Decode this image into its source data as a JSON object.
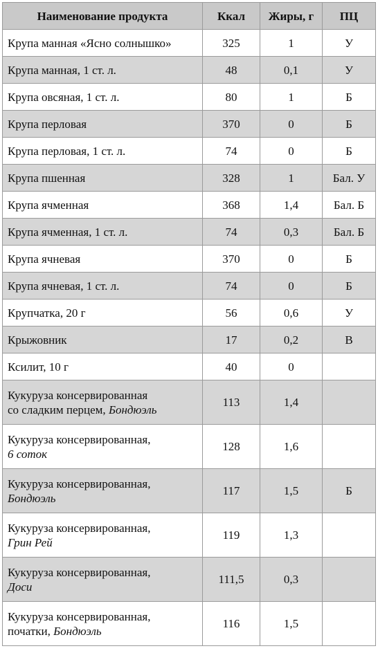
{
  "headers": {
    "name": "Наименование продукта",
    "kcal": "Ккал",
    "fat": "Жиры, г",
    "pc": "ПЦ"
  },
  "rows": [
    {
      "name": "Крупа манная «Ясно солнышко»",
      "kcal": "325",
      "fat": "1",
      "pc": "У"
    },
    {
      "name": "Крупа манная, 1 ст. л.",
      "kcal": "48",
      "fat": "0,1",
      "pc": "У"
    },
    {
      "name": "Крупа овсяная, 1 ст. л.",
      "kcal": "80",
      "fat": "1",
      "pc": "Б"
    },
    {
      "name": "Крупа перловая",
      "kcal": "370",
      "fat": "0",
      "pc": "Б"
    },
    {
      "name": "Крупа перловая, 1 ст. л.",
      "kcal": "74",
      "fat": "0",
      "pc": "Б"
    },
    {
      "name": "Крупа пшенная",
      "kcal": "328",
      "fat": "1",
      "pc": "Бал. У"
    },
    {
      "name": "Крупа ячменная",
      "kcal": "368",
      "fat": "1,4",
      "pc": "Бал. Б"
    },
    {
      "name": "Крупа ячменная, 1 ст. л.",
      "kcal": "74",
      "fat": "0,3",
      "pc": "Бал. Б"
    },
    {
      "name": "Крупа ячневая",
      "kcal": "370",
      "fat": "0",
      "pc": "Б"
    },
    {
      "name": "Крупа ячневая, 1 ст. л.",
      "kcal": "74",
      "fat": "0",
      "pc": "Б"
    },
    {
      "name": "Крупчатка, 20 г",
      "kcal": "56",
      "fat": "0,6",
      "pc": "У"
    },
    {
      "name": "Крыжовник",
      "kcal": "17",
      "fat": "0,2",
      "pc": "В"
    },
    {
      "name": "Ксилит, 10 г",
      "kcal": "40",
      "fat": "0",
      "pc": ""
    },
    {
      "name": "Кукуруза консервированная",
      "name_brand": "со сладким перцем, ",
      "name_italic": "Бондюэль",
      "kcal": "113",
      "fat": "1,4",
      "pc": ""
    },
    {
      "name": "Кукуруза консервированная,",
      "name_brand": "",
      "name_italic": "6 соток",
      "kcal": "128",
      "fat": "1,6",
      "pc": ""
    },
    {
      "name": "Кукуруза консервированная,",
      "name_brand": "",
      "name_italic": "Бондюэль",
      "kcal": "117",
      "fat": "1,5",
      "pc": "Б"
    },
    {
      "name": "Кукуруза консервированная,",
      "name_brand": "",
      "name_italic": "Грин Рей",
      "kcal": "119",
      "fat": "1,3",
      "pc": ""
    },
    {
      "name": "Кукуруза консервированная,",
      "name_brand": "",
      "name_italic": "Доси",
      "kcal": "111,5",
      "fat": "0,3",
      "pc": ""
    },
    {
      "name": "Кукуруза консервированная,",
      "name_brand": "початки, ",
      "name_italic": "Бондюэль",
      "kcal": "116",
      "fat": "1,5",
      "pc": ""
    }
  ]
}
